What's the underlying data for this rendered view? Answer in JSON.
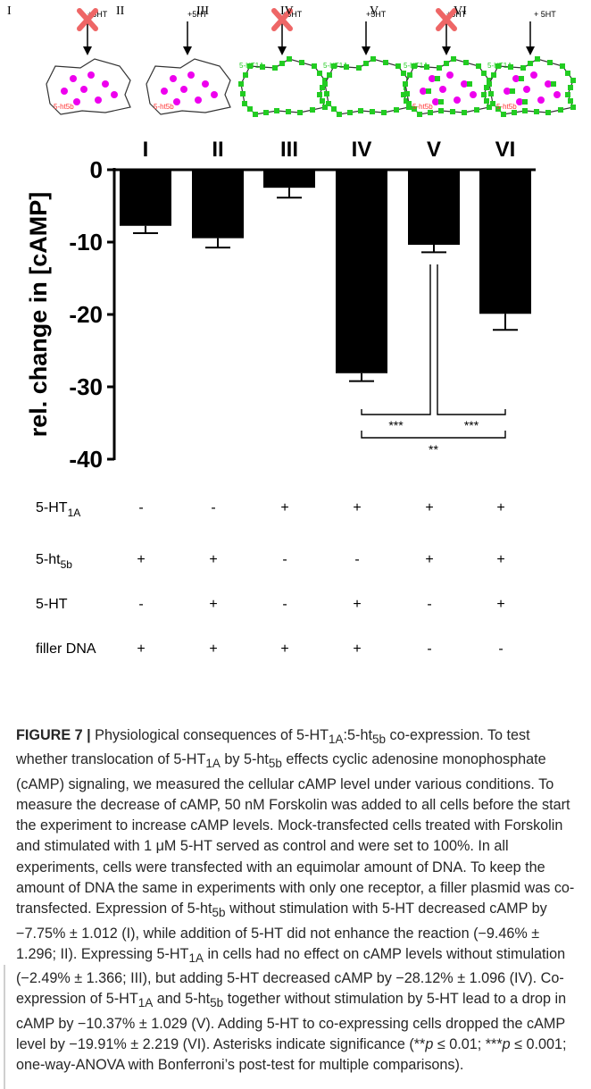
{
  "schematic": {
    "panels": [
      {
        "numeral": "I",
        "treatment": "+5HT",
        "blocked": true,
        "receptor_1a": false,
        "receptor_5b": true,
        "label_5b": "5-ht5b",
        "label_1a": ""
      },
      {
        "numeral": "II",
        "treatment": "+5HT",
        "blocked": false,
        "receptor_1a": false,
        "receptor_5b": true,
        "label_5b": "5-ht5b",
        "label_1a": ""
      },
      {
        "numeral": "III",
        "treatment": "+5HT",
        "blocked": true,
        "receptor_1a": true,
        "receptor_5b": false,
        "label_5b": "",
        "label_1a": "5-HT1A"
      },
      {
        "numeral": "IV",
        "treatment": "+5HT",
        "blocked": false,
        "receptor_1a": true,
        "receptor_5b": false,
        "label_5b": "",
        "label_1a": "5-HT1A"
      },
      {
        "numeral": "V",
        "treatment": "+5HT",
        "blocked": true,
        "receptor_1a": true,
        "receptor_5b": true,
        "label_5b": "5-ht5b",
        "label_1a": "5-HT1A"
      },
      {
        "numeral": "VI",
        "treatment": "+ 5HT",
        "blocked": false,
        "receptor_1a": true,
        "receptor_5b": true,
        "label_5b": "5-ht5b",
        "label_1a": "5-HT1A"
      }
    ],
    "colors": {
      "ht5b": "#ee00ee",
      "ht1a": "#22cc22",
      "block": "#ee6666",
      "label_5b": "#ff3333",
      "label_1a": "#22cc22"
    }
  },
  "chart_data": {
    "type": "bar",
    "categories": [
      "I",
      "II",
      "III",
      "IV",
      "V",
      "VI"
    ],
    "values": [
      -7.75,
      -9.46,
      -2.49,
      -28.12,
      -10.37,
      -19.91
    ],
    "errors": [
      1.012,
      1.296,
      1.366,
      1.096,
      1.029,
      2.219
    ],
    "ylabel": "rel. change in [cAMP]",
    "ylim": [
      -40,
      0
    ],
    "yticks": [
      0,
      -10,
      -20,
      -30,
      -40
    ],
    "ytick_labels": [
      "0",
      "-10",
      "-20",
      "-30",
      "-40"
    ],
    "bar_color": "#000000",
    "significance": [
      {
        "from": "IV",
        "to": "V",
        "label": "***"
      },
      {
        "from": "V",
        "to": "VI",
        "label": "***"
      },
      {
        "from": "IV",
        "to": "VI",
        "label": "**"
      }
    ]
  },
  "conditions_table": {
    "rows": [
      {
        "label": "5-HT",
        "sub": "1A",
        "values": [
          "-",
          "-",
          "+",
          "+",
          "+",
          "+"
        ]
      },
      {
        "label": "5-ht",
        "sub": "5b",
        "values": [
          "+",
          "+",
          "-",
          "-",
          "+",
          "+"
        ]
      },
      {
        "label": "5-HT",
        "sub": "",
        "values": [
          "-",
          "+",
          "-",
          "+",
          "-",
          "+"
        ]
      },
      {
        "label": "filler DNA",
        "sub": "",
        "values": [
          "+",
          "+",
          "+",
          "+",
          "-",
          "-"
        ]
      }
    ]
  },
  "caption": {
    "label": "FIGURE 7 |",
    "t1": " Physiological consequences of 5-HT",
    "s1": "1A",
    "t2": ":5-ht",
    "s2": "5b",
    "t3": " co-expression. To test whether translocation of 5-HT",
    "s3": "1A",
    "t4": " by 5-ht",
    "s4": "5b",
    "t5": " effects cyclic adenosine monophosphate (cAMP) signaling, we measured the cellular cAMP level under various conditions. To measure the decrease of cAMP, 50 nM Forskolin was added to all cells before the start the experiment to increase cAMP levels. Mock-transfected cells treated with Forskolin and stimulated with 1 μM 5-HT served as control and were set to 100%. In all experiments, cells were transfected with an equimolar amount of DNA. To keep the amount of DNA the same in experiments with only one receptor, a filler plasmid was co-transfected. Expression of 5-ht",
    "s5": "5b",
    "t6": " without stimulation with 5-HT decreased cAMP by −7.75% ± 1.012 (I), while addition of 5-HT did not enhance the reaction (−9.46% ± 1.296; II). Expressing 5-HT",
    "s6": "1A",
    "t7": " in cells had no effect on cAMP levels without stimulation (−2.49% ± 1.366; III), but adding 5-HT decreased cAMP by −28.12% ± 1.096 (IV). Co-expression of 5-HT",
    "s7": "1A",
    "t8": " and 5-ht",
    "s8": "5b",
    "t9": " together without stimulation by 5-HT lead to a drop in cAMP by −10.37% ± 1.029 (V). Adding 5-HT to co-expressing cells dropped the cAMP level by −19.91% ± 2.219 (VI). Asterisks indicate significance (**",
    "i1": "p",
    "t10": " ≤ 0.01; ***",
    "i2": "p",
    "t11": " ≤ 0.001; one-way-ANOVA with Bonferroni’s post-test for multiple comparisons)."
  }
}
